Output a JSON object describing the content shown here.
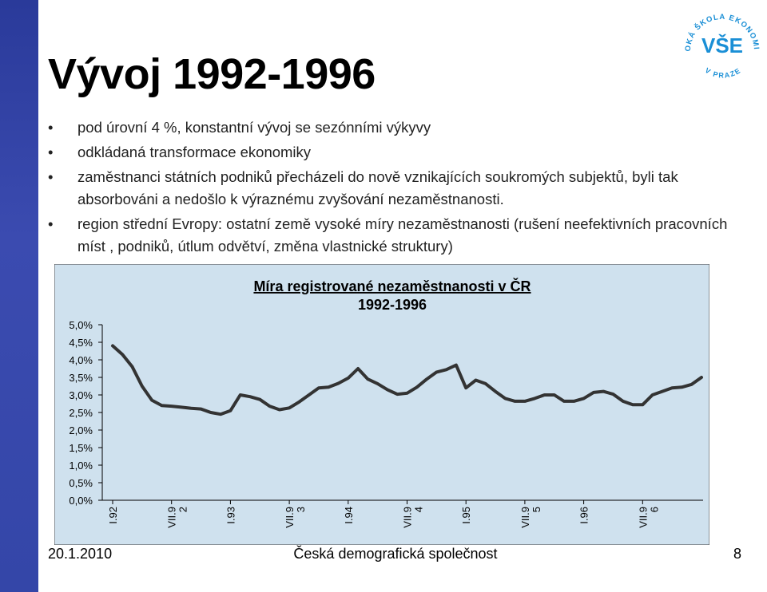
{
  "slide": {
    "title": "Vývoj 1992-1996",
    "bullets": [
      "pod úrovní 4 %, konstantní vývoj se sezónními výkyvy",
      "odkládaná transformace ekonomiky",
      "zaměstnanci státních podniků přecházeli do nově vznikajících soukromých subjektů, byli tak absorbováni a nedošlo k výraznému zvyšování nezaměstnanosti.",
      "region střední Evropy: ostatní země vysoké míry nezaměstnanosti (rušení neefektivních pracovních míst , podniků, útlum odvětví, změna vlastnické struktury)"
    ],
    "logo": {
      "ring_text": "VYSOKÁ ŠKOLA EKONOMICKÁ",
      "bottom_text": "V PRAZE",
      "mark": "VŠE",
      "color": "#1a8fd6"
    }
  },
  "chart_data": {
    "type": "line",
    "title": "Míra registrované nezaměstnanosti v ČR",
    "subtitle": "1992-1996",
    "ylim": [
      0,
      5
    ],
    "yticks": [
      "0,0%",
      "0,5%",
      "1,0%",
      "1,5%",
      "2,0%",
      "2,5%",
      "3,0%",
      "3,5%",
      "4,0%",
      "4,5%",
      "5,0%"
    ],
    "xtick_labels": [
      {
        "index": 0,
        "text": "I.92"
      },
      {
        "index": 6,
        "text": "VII.9\n2"
      },
      {
        "index": 12,
        "text": "I.93"
      },
      {
        "index": 18,
        "text": "VII.9\n3"
      },
      {
        "index": 24,
        "text": "I.94"
      },
      {
        "index": 30,
        "text": "VII.9\n4"
      },
      {
        "index": 36,
        "text": "I.95"
      },
      {
        "index": 42,
        "text": "VII.9\n5"
      },
      {
        "index": 48,
        "text": "I.96"
      },
      {
        "index": 54,
        "text": "VII.9\n6"
      }
    ],
    "series": [
      {
        "name": "",
        "values": [
          4.4,
          4.15,
          3.8,
          3.25,
          2.85,
          2.7,
          2.68,
          2.65,
          2.62,
          2.6,
          2.5,
          2.45,
          2.55,
          3.0,
          2.95,
          2.87,
          2.68,
          2.58,
          2.63,
          2.8,
          3.0,
          3.2,
          3.22,
          3.33,
          3.48,
          3.75,
          3.45,
          3.32,
          3.15,
          3.02,
          3.05,
          3.22,
          3.45,
          3.65,
          3.72,
          3.85,
          3.2,
          3.42,
          3.32,
          3.1,
          2.9,
          2.82,
          2.82,
          2.9,
          3.0,
          3.0,
          2.82,
          2.82,
          2.9,
          3.07,
          3.1,
          3.02,
          2.82,
          2.72,
          2.72,
          3.0,
          3.1,
          3.2,
          3.22,
          3.3,
          3.5
        ],
        "color": "#333333"
      }
    ],
    "grid": false,
    "legend": "none",
    "background": "#cfe1ee"
  },
  "footer": {
    "date": "20.1.2010",
    "center": "Česká demografická společnost",
    "page": "8"
  }
}
